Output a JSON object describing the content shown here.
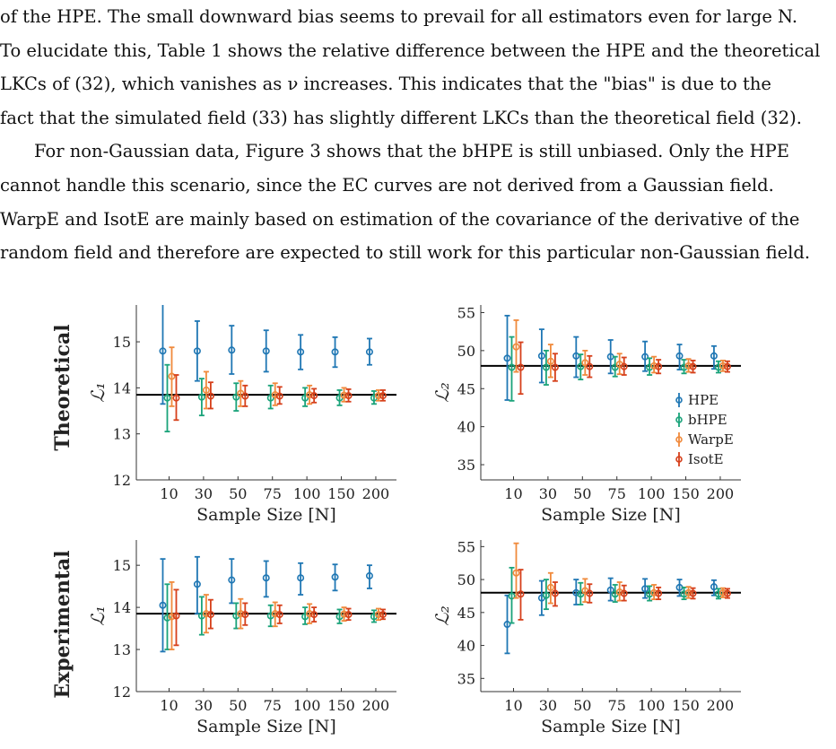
{
  "paragraphs": [
    {
      "lines": [
        "of the HPE. The small downward bias seems to prevail for all estimators even for large N.",
        "To elucidate this, Table 1 shows the relative difference between the HPE and the theoretical",
        "LKCs of (32), which vanishes as ν increases. This indicates that the \"bias\" is due to the",
        "fact that the simulated field (33) has slightly different LKCs than the theoretical field (32)."
      ]
    },
    {
      "lines": [
        "For non-Gaussian data, Figure 3 shows that the bHPE is still unbiased. Only the HPE",
        "cannot handle this scenario, since the EC curves are not derived from a Gaussian field.",
        "WarpE and IsotE are mainly based on estimation of the covariance of the derivative of the",
        "random field and therefore are expected to still work for this particular non-Gaussian field."
      ]
    }
  ],
  "figure": {
    "row_labels": [
      "Theoretical",
      "Experimental"
    ],
    "series_colors": {
      "HPE": "#1f77b4",
      "bHPE": "#1aa37a",
      "WarpE": "#f08a3c",
      "IsotE": "#d6401b"
    },
    "legend": [
      "HPE",
      "bHPE",
      "WarpE",
      "IsotE"
    ],
    "xlabel": "Sample Size [N]"
  },
  "chart_data": [
    {
      "type": "scatter",
      "row": "Theoretical",
      "ylabel": "L1",
      "xlabel": "Sample Size [N]",
      "categories": [
        "10",
        "30",
        "50",
        "75",
        "100",
        "150",
        "200"
      ],
      "ylim": [
        12,
        15.8
      ],
      "yticks": [
        12,
        13,
        14,
        15
      ],
      "reference_line": 13.85,
      "series": [
        {
          "name": "HPE",
          "values": [
            14.8,
            14.8,
            14.82,
            14.8,
            14.78,
            14.78,
            14.78
          ],
          "lower": [
            13.65,
            14.15,
            14.3,
            14.35,
            14.4,
            14.45,
            14.5
          ],
          "upper": [
            15.9,
            15.45,
            15.35,
            15.25,
            15.15,
            15.1,
            15.07
          ]
        },
        {
          "name": "bHPE",
          "values": [
            13.78,
            13.8,
            13.8,
            13.78,
            13.78,
            13.78,
            13.78
          ],
          "lower": [
            13.05,
            13.4,
            13.5,
            13.55,
            13.6,
            13.62,
            13.65
          ],
          "upper": [
            14.5,
            14.2,
            14.1,
            14.05,
            14.0,
            13.95,
            13.93
          ]
        },
        {
          "name": "WarpE",
          "values": [
            14.25,
            13.95,
            13.88,
            13.85,
            13.85,
            13.84,
            13.83
          ],
          "lower": [
            13.6,
            13.55,
            13.6,
            13.62,
            13.65,
            13.7,
            13.72
          ],
          "upper": [
            14.88,
            14.35,
            14.15,
            14.1,
            14.05,
            14.0,
            13.95
          ]
        },
        {
          "name": "IsotE",
          "values": [
            13.78,
            13.82,
            13.82,
            13.82,
            13.83,
            13.83,
            13.83
          ],
          "lower": [
            13.3,
            13.55,
            13.6,
            13.65,
            13.68,
            13.7,
            13.72
          ],
          "upper": [
            14.28,
            14.12,
            14.05,
            14.02,
            13.98,
            13.97,
            13.95
          ]
        }
      ]
    },
    {
      "type": "scatter",
      "row": "Theoretical",
      "ylabel": "L2",
      "xlabel": "Sample Size [N]",
      "categories": [
        "10",
        "30",
        "50",
        "75",
        "100",
        "150",
        "200"
      ],
      "ylim": [
        33,
        56
      ],
      "yticks": [
        35,
        40,
        45,
        50,
        55
      ],
      "reference_line": 48.0,
      "series": [
        {
          "name": "HPE",
          "values": [
            49.0,
            49.3,
            49.3,
            49.2,
            49.2,
            49.3,
            49.3
          ],
          "lower": [
            43.5,
            45.8,
            46.5,
            47.0,
            47.3,
            47.5,
            47.6
          ],
          "upper": [
            54.6,
            52.8,
            51.8,
            51.4,
            51.2,
            50.8,
            50.6
          ]
        },
        {
          "name": "bHPE",
          "values": [
            47.8,
            47.8,
            47.9,
            47.8,
            47.8,
            47.8,
            47.8
          ],
          "lower": [
            43.4,
            45.5,
            46.2,
            46.6,
            46.8,
            47.0,
            47.1
          ],
          "upper": [
            51.8,
            50.0,
            49.5,
            49.2,
            49.0,
            48.8,
            48.6
          ]
        },
        {
          "name": "WarpE",
          "values": [
            50.5,
            48.6,
            48.4,
            48.2,
            48.0,
            48.0,
            48.0
          ],
          "lower": [
            47.2,
            46.5,
            46.8,
            46.9,
            47.1,
            47.2,
            47.3
          ],
          "upper": [
            54.0,
            50.8,
            50.0,
            49.6,
            49.2,
            48.9,
            48.7
          ]
        },
        {
          "name": "IsotE",
          "values": [
            47.8,
            47.8,
            47.9,
            47.9,
            47.9,
            47.9,
            47.9
          ],
          "lower": [
            44.3,
            46.0,
            46.5,
            46.8,
            47.0,
            47.1,
            47.2
          ],
          "upper": [
            51.1,
            49.6,
            49.3,
            49.1,
            48.8,
            48.7,
            48.6
          ]
        }
      ]
    },
    {
      "type": "scatter",
      "row": "Experimental",
      "ylabel": "L1",
      "xlabel": "Sample Size [N]",
      "categories": [
        "10",
        "30",
        "50",
        "75",
        "100",
        "150",
        "200"
      ],
      "ylim": [
        12,
        15.6
      ],
      "yticks": [
        12,
        13,
        14,
        15
      ],
      "reference_line": 13.85,
      "series": [
        {
          "name": "HPE",
          "values": [
            14.05,
            14.55,
            14.65,
            14.7,
            14.7,
            14.72,
            14.75
          ],
          "lower": [
            12.95,
            13.85,
            14.1,
            14.25,
            14.3,
            14.4,
            14.45
          ],
          "upper": [
            15.15,
            15.2,
            15.15,
            15.1,
            15.05,
            15.02,
            15.0
          ]
        },
        {
          "name": "bHPE",
          "values": [
            13.75,
            13.8,
            13.8,
            13.8,
            13.78,
            13.78,
            13.78
          ],
          "lower": [
            13.0,
            13.35,
            13.5,
            13.55,
            13.6,
            13.62,
            13.65
          ],
          "upper": [
            14.55,
            14.25,
            14.1,
            14.05,
            14.0,
            13.95,
            13.93
          ]
        },
        {
          "name": "WarpE",
          "values": [
            13.78,
            13.85,
            13.85,
            13.85,
            13.85,
            13.84,
            13.83
          ],
          "lower": [
            13.0,
            13.4,
            13.5,
            13.55,
            13.62,
            13.68,
            13.7
          ],
          "upper": [
            14.6,
            14.3,
            14.2,
            14.12,
            14.08,
            14.0,
            13.97
          ]
        },
        {
          "name": "IsotE",
          "values": [
            13.8,
            13.83,
            13.83,
            13.83,
            13.83,
            13.83,
            13.83
          ],
          "lower": [
            13.1,
            13.5,
            13.58,
            13.62,
            13.66,
            13.7,
            13.72
          ],
          "upper": [
            14.42,
            14.18,
            14.1,
            14.05,
            14.0,
            13.97,
            13.95
          ]
        }
      ]
    },
    {
      "type": "scatter",
      "row": "Experimental",
      "ylabel": "L2",
      "xlabel": "Sample Size [N]",
      "categories": [
        "10",
        "30",
        "50",
        "75",
        "100",
        "150",
        "200"
      ],
      "ylim": [
        33,
        56
      ],
      "yticks": [
        35,
        40,
        45,
        50,
        55
      ],
      "reference_line": 48.0,
      "series": [
        {
          "name": "HPE",
          "values": [
            43.2,
            47.2,
            48.0,
            48.4,
            48.6,
            48.8,
            48.9
          ],
          "lower": [
            38.8,
            44.6,
            46.2,
            46.8,
            47.2,
            47.5,
            47.6
          ],
          "upper": [
            47.6,
            49.8,
            50.0,
            50.2,
            50.1,
            50.0,
            49.9
          ]
        },
        {
          "name": "bHPE",
          "values": [
            47.5,
            47.6,
            47.8,
            47.8,
            47.8,
            47.8,
            47.8
          ],
          "lower": [
            43.4,
            45.5,
            46.2,
            46.6,
            46.8,
            47.0,
            47.1
          ],
          "upper": [
            51.8,
            50.0,
            49.5,
            49.2,
            49.0,
            48.8,
            48.6
          ]
        },
        {
          "name": "WarpE",
          "values": [
            51.0,
            48.8,
            48.3,
            48.1,
            48.0,
            48.0,
            48.0
          ],
          "lower": [
            47.2,
            46.4,
            46.6,
            46.8,
            47.0,
            47.2,
            47.3
          ],
          "upper": [
            55.5,
            51.0,
            50.1,
            49.6,
            49.2,
            48.9,
            48.7
          ]
        },
        {
          "name": "IsotE",
          "values": [
            47.8,
            47.9,
            47.9,
            47.9,
            47.9,
            47.9,
            47.9
          ],
          "lower": [
            43.9,
            46.0,
            46.5,
            46.8,
            47.0,
            47.1,
            47.2
          ],
          "upper": [
            51.5,
            49.6,
            49.3,
            49.1,
            48.8,
            48.7,
            48.6
          ]
        }
      ]
    }
  ]
}
